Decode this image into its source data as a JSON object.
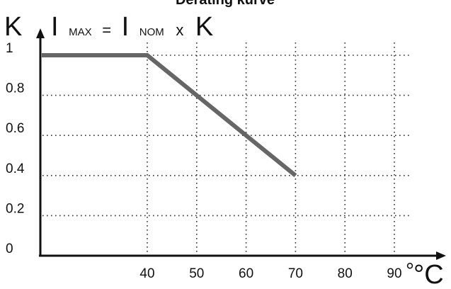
{
  "chart_data": {
    "type": "line",
    "title": "Derating kurve",
    "ylabel": "K",
    "xlabel": "°C",
    "formula": {
      "lhs_main": "I",
      "lhs_sub": "MAX",
      "equals": "=",
      "rhs_main": "I",
      "rhs_sub": "NOM",
      "times": "x",
      "factor": "K"
    },
    "xlim": [
      20,
      95
    ],
    "ylim": [
      0,
      1.05
    ],
    "x_ticks": [
      {
        "value": 40,
        "label": "40"
      },
      {
        "value": 50,
        "label": "50"
      },
      {
        "value": 60,
        "label": "60"
      },
      {
        "value": 70,
        "label": "70"
      },
      {
        "value": 80,
        "label": "80"
      },
      {
        "value": 90,
        "label": "90"
      }
    ],
    "y_ticks": [
      {
        "value": 0,
        "label": "0"
      },
      {
        "value": 0.2,
        "label": "0.2"
      },
      {
        "value": 0.4,
        "label": "0.4"
      },
      {
        "value": 0.6,
        "label": "0.6"
      },
      {
        "value": 0.8,
        "label": "0.8"
      },
      {
        "value": 1,
        "label": "1"
      }
    ],
    "grid": true,
    "series": [
      {
        "x": [
          20,
          40,
          70
        ],
        "y": [
          1,
          1,
          0.4
        ]
      }
    ],
    "colors": {
      "series": "#666666",
      "axis": "#111111",
      "grid": "#333333"
    }
  }
}
